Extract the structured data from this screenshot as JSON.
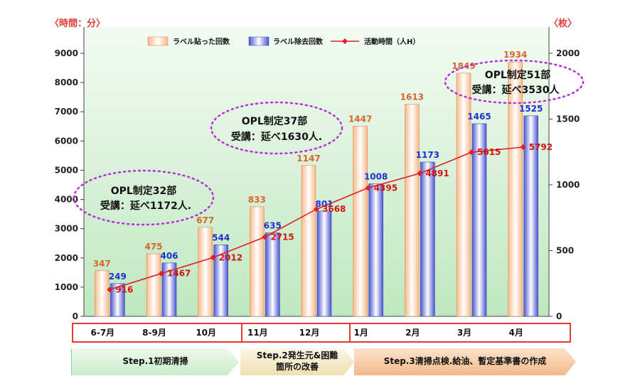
{
  "chart_data": {
    "type": "bar",
    "title": "",
    "left_unit": "〈時間：分〉",
    "right_unit": "〈枚〉",
    "categories": [
      "6-7月",
      "8-9月",
      "10月",
      "11月",
      "12月",
      "1月",
      "2月",
      "3月",
      "4月"
    ],
    "y_left": {
      "lim": [
        0,
        9000
      ],
      "ticks": [
        0,
        1000,
        2000,
        3000,
        4000,
        5000,
        6000,
        7000,
        8000,
        9000
      ]
    },
    "y_right": {
      "lim": [
        0,
        2000
      ],
      "ticks": [
        0,
        500,
        1000,
        1500,
        2000
      ]
    },
    "series": [
      {
        "name": "ラベル貼った回数",
        "type": "bar",
        "axis": "right",
        "color": "#f2a56f",
        "values": [
          347,
          475,
          677,
          833,
          1147,
          1447,
          1613,
          1849,
          1934
        ]
      },
      {
        "name": "ラベル除去回数",
        "type": "bar",
        "axis": "right",
        "color": "#5b63d8",
        "values": [
          249,
          406,
          544,
          635,
          801,
          1008,
          1173,
          1465,
          1525
        ]
      },
      {
        "name": "活動時間（人H）",
        "type": "line",
        "axis": "left",
        "color": "#e02020",
        "values": [
          916,
          1467,
          2012,
          2715,
          3668,
          4395,
          4891,
          5615,
          5792
        ]
      }
    ],
    "annotations": [
      {
        "line1": "OPL制定32部",
        "line2": "受講：延べ1172人."
      },
      {
        "line1": "OPL制定37部",
        "line2": "受講：延べ1630人."
      },
      {
        "line1": "OPL制定51部",
        "line2": "受講：延べ3530人"
      }
    ],
    "grid": false,
    "legend": "top"
  },
  "steps": [
    {
      "label": "Step.1初期清掃"
    },
    {
      "label": "Step.2発生元&困難\n箇所の改善"
    },
    {
      "label": "Step.3清掃点検.給油、暫定基準書の作成"
    }
  ],
  "colors": {
    "plot_bg_top": "#f3fbf3",
    "plot_bg_bottom": "#bfe8bf",
    "group_border": "#e53935",
    "annotation_ellipse": "#b72fd6"
  }
}
